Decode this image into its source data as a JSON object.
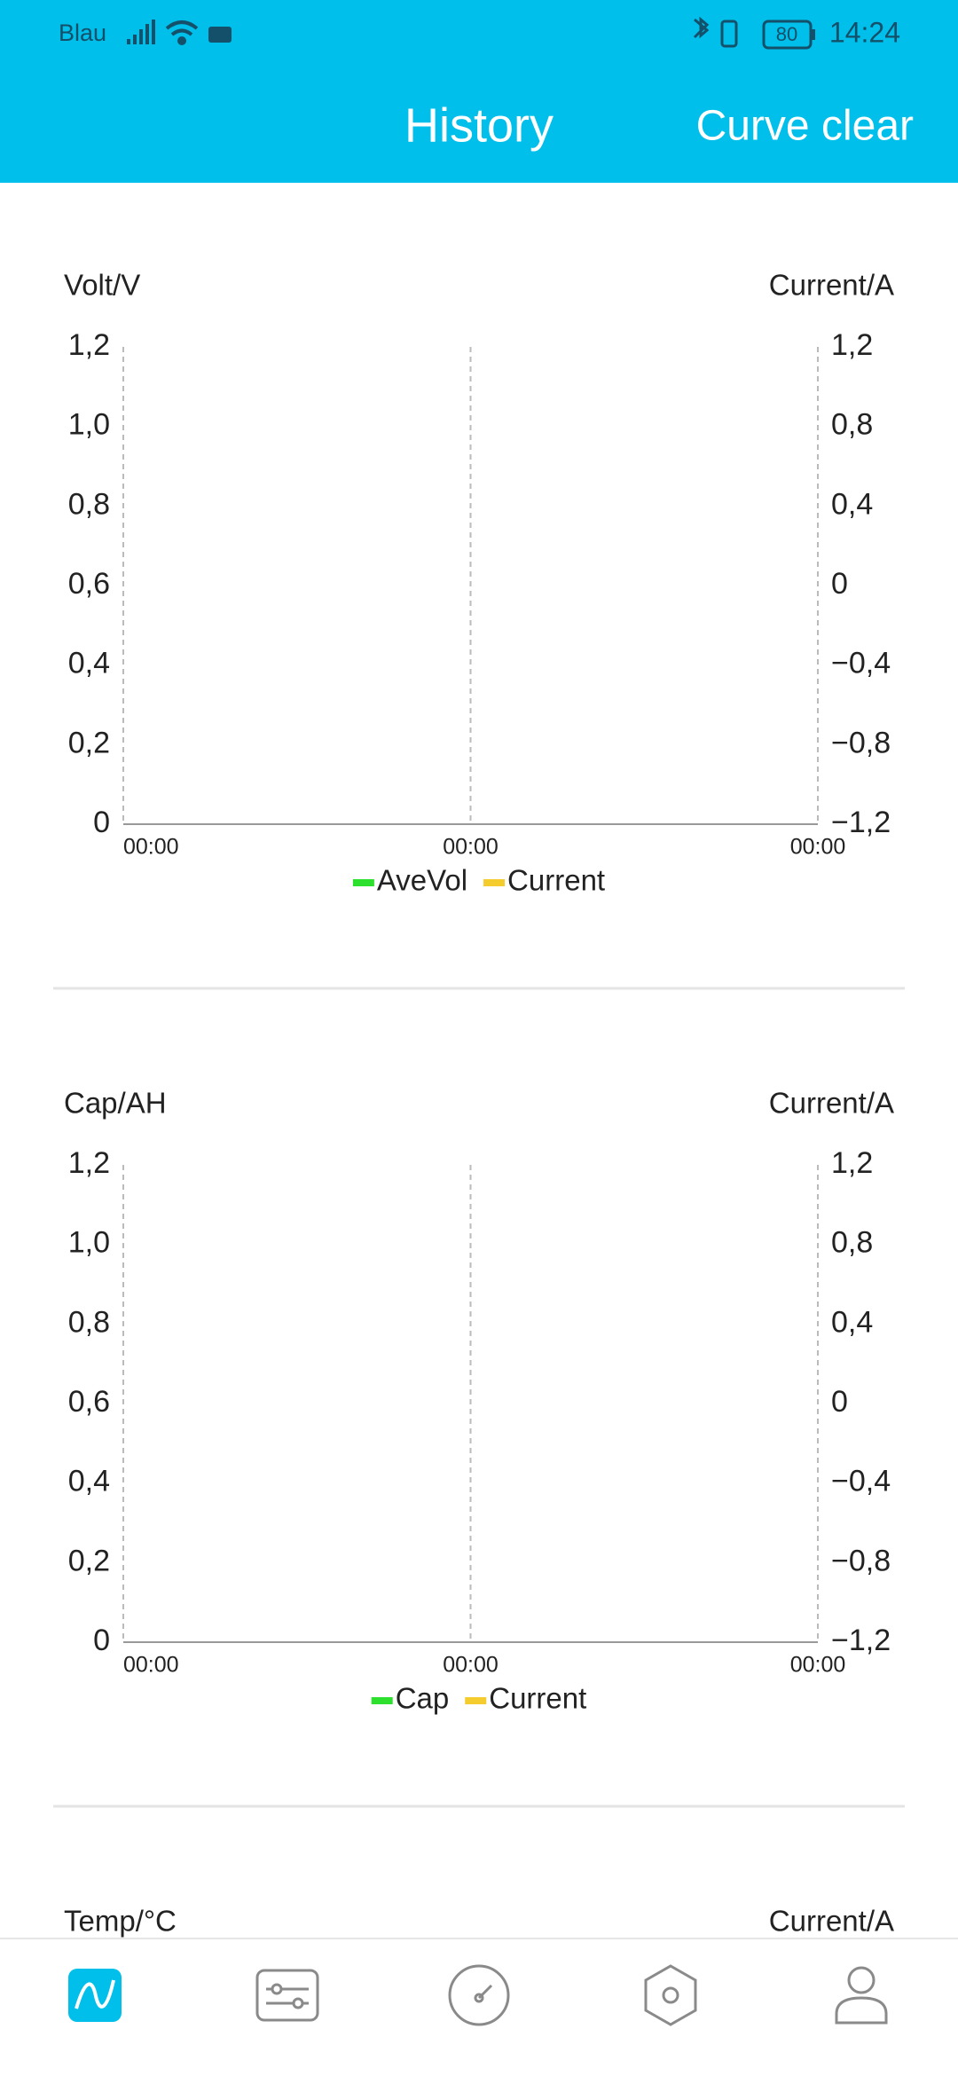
{
  "status_bar": {
    "carrier": "Blau",
    "battery": "80",
    "time": "14:24"
  },
  "header": {
    "title": "History",
    "action": "Curve clear"
  },
  "chart_data": [
    {
      "type": "line",
      "ylabel": "Volt/V",
      "y2label": "Current/A",
      "categories": [
        "00:00",
        "00:00",
        "00:00"
      ],
      "series": [
        {
          "name": "AveVol",
          "color": "#2ee02e",
          "values": [
            null,
            null,
            null
          ]
        },
        {
          "name": "Current",
          "color": "#f5cc2e",
          "axis": "y2",
          "values": [
            null,
            null,
            null
          ]
        }
      ],
      "ylim": [
        0,
        1.2
      ],
      "yticks": [
        0,
        {
          "value": 0.2,
          "label": "0,2"
        },
        {
          "value": 0.4,
          "label": "0,4"
        },
        {
          "value": 0.6,
          "label": "0,6"
        },
        {
          "value": 0.8,
          "label": "0,8"
        },
        {
          "value": 1.0,
          "label": "1,0"
        },
        {
          "value": 1.2,
          "label": "1,2"
        }
      ],
      "y2lim": [
        -1.2,
        1.2
      ],
      "y2ticks": [
        {
          "value": -1.2,
          "label": "−1,2"
        },
        {
          "value": -0.8,
          "label": "−0,8"
        },
        {
          "value": -0.4,
          "label": "−0,4"
        },
        0,
        {
          "value": 0.4,
          "label": "0,4"
        },
        {
          "value": 0.8,
          "label": "0,8"
        },
        {
          "value": 1.2,
          "label": "1,2"
        }
      ],
      "grid": true,
      "legend": "bottom"
    },
    {
      "type": "line",
      "ylabel": "Cap/AH",
      "y2label": "Current/A",
      "categories": [
        "00:00",
        "00:00",
        "00:00"
      ],
      "series": [
        {
          "name": "Cap",
          "color": "#2ee02e",
          "values": [
            null,
            null,
            null
          ]
        },
        {
          "name": "Current",
          "color": "#f5cc2e",
          "axis": "y2",
          "values": [
            null,
            null,
            null
          ]
        }
      ],
      "ylim": [
        0,
        1.2
      ],
      "yticks": [
        0,
        {
          "value": 0.2,
          "label": "0,2"
        },
        {
          "value": 0.4,
          "label": "0,4"
        },
        {
          "value": 0.6,
          "label": "0,6"
        },
        {
          "value": 0.8,
          "label": "0,8"
        },
        {
          "value": 1.0,
          "label": "1,0"
        },
        {
          "value": 1.2,
          "label": "1,2"
        }
      ],
      "y2lim": [
        -1.2,
        1.2
      ],
      "y2ticks": [
        {
          "value": -1.2,
          "label": "−1,2"
        },
        {
          "value": -0.8,
          "label": "−0,8"
        },
        {
          "value": -0.4,
          "label": "−0,4"
        },
        0,
        {
          "value": 0.4,
          "label": "0,4"
        },
        {
          "value": 0.8,
          "label": "0,8"
        },
        {
          "value": 1.2,
          "label": "1,2"
        }
      ],
      "grid": true,
      "legend": "bottom"
    },
    {
      "type": "line",
      "ylabel": "Temp/°C",
      "y2label": "Current/A"
    }
  ],
  "nav": {
    "items": [
      "History",
      "Control",
      "RT",
      "Parameter",
      "Mine"
    ]
  }
}
